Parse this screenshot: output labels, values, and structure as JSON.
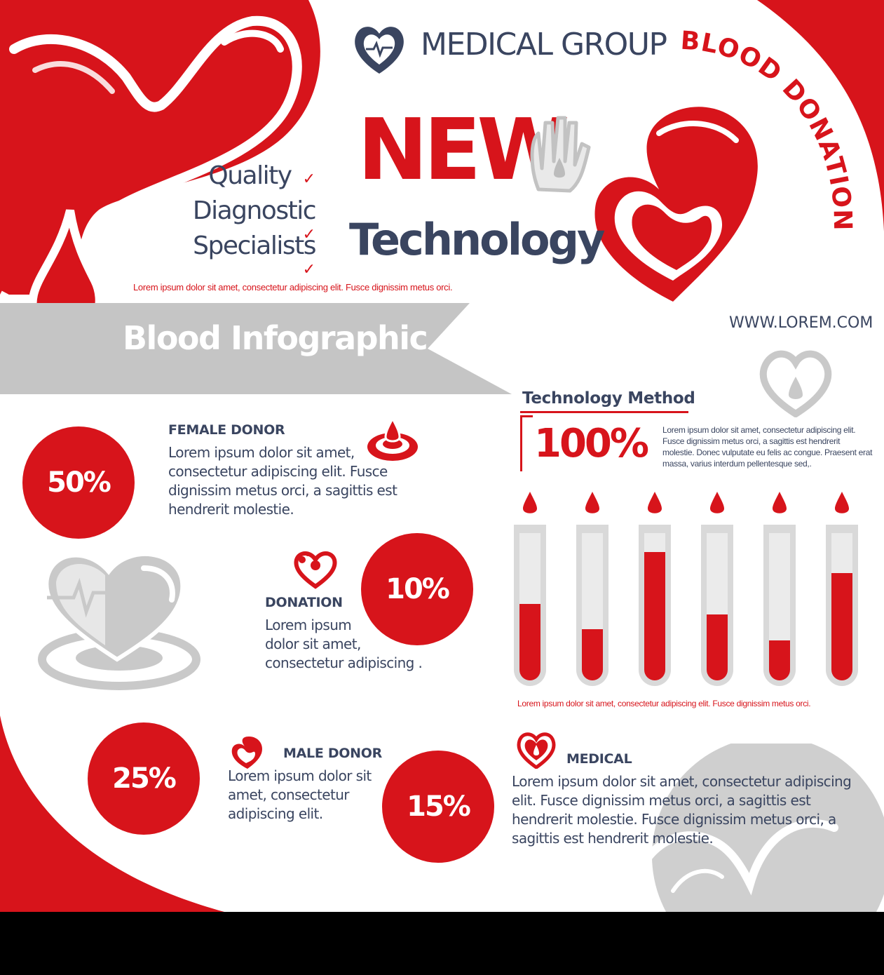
{
  "header": {
    "brand": "MEDICAL GROUP",
    "badge": "BLOOD DONATION",
    "new": "NEW",
    "technology": "Technology",
    "checklist": [
      "Quality",
      "Diagnostic",
      "Specialists"
    ],
    "caption": "Lorem ipsum dolor sit amet, consectetur adipiscing elit. Fusce dignissim metus orci.",
    "website": "WWW.LOREM.COM"
  },
  "banner": {
    "title": "Blood Infographic"
  },
  "stats": [
    {
      "value": "50%",
      "label": "FEMALE DONOR",
      "text": "Lorem ipsum dolor sit amet,\nconsectetur adipiscing elit. Fusce\ndignissim metus orci, a sagittis est\nhendrerit molestie."
    },
    {
      "value": "10%",
      "label": "DONATION",
      "text": "Lorem ipsum\ndolor sit amet,\nconsectetur adipiscing ."
    },
    {
      "value": "25%",
      "label": "MALE DONOR",
      "text": "Lorem ipsum dolor sit\namet, consectetur\nadipiscing elit."
    },
    {
      "value": "15%",
      "label": "MEDICAL",
      "text": "Lorem ipsum dolor sit amet, consectetur adipiscing\nelit. Fusce dignissim metus orci, a sagittis est\nhendrerit molestie. Fusce dignissim metus orci, a\nsagittis est hendrerit molestie."
    }
  ],
  "method": {
    "title": "Technology Method",
    "percent": "100%",
    "text": "Lorem ipsum dolor sit amet, consectetur adipiscing elit.\nFusce dignissim metus orci, a sagittis est hendrerit\nmolestie. Donec vulputate eu felis ac congue. Praesent erat\nmassa, varius interdum pellentesque sed,.",
    "tube_levels": [
      0.52,
      0.35,
      0.87,
      0.45,
      0.27,
      0.73
    ],
    "caption": "Lorem ipsum dolor sit amet, consectetur adipiscing elit. Fusce dignissim metus orci."
  },
  "colors": {
    "accent": "#d7141b",
    "navy": "#3a4560",
    "grey": "#c2c2c2"
  },
  "icons": [
    "heart-logo-icon",
    "check-icon",
    "hand-drop-icon",
    "heart-drop-icon",
    "blood-drop-icon",
    "heart-pulse-icon",
    "test-tube-icon"
  ]
}
